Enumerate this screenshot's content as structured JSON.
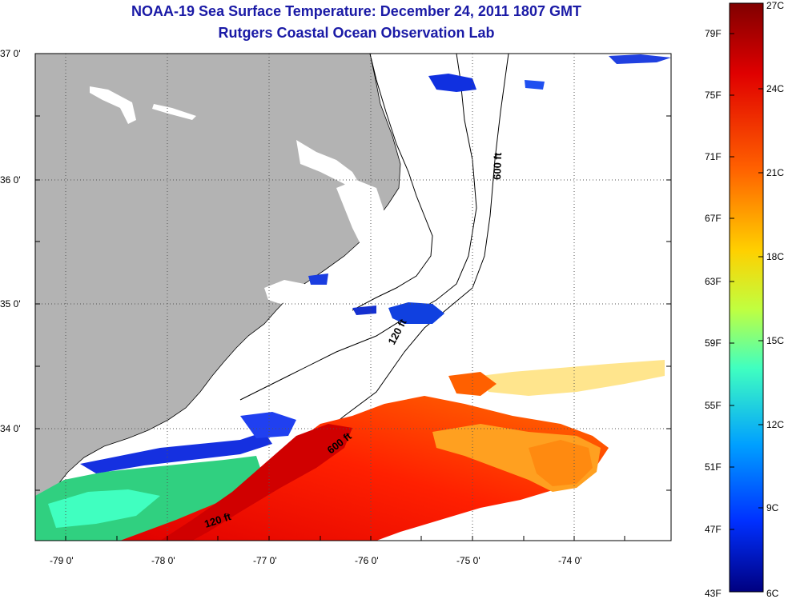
{
  "header": {
    "title": "NOAA-19 Sea Surface Temperature:  December 24, 2011 1807 GMT",
    "subtitle": "Rutgers Coastal Ocean Observation Lab"
  },
  "axes": {
    "latitude_labels": [
      "37 0'",
      "36 0'",
      "35 0'",
      "34 0'"
    ],
    "longitude_labels": [
      "-79 0'",
      "-78 0'",
      "-77 0'",
      "-76 0'",
      "-75 0'",
      "-74 0'"
    ]
  },
  "contours": {
    "label_600": "600 ft",
    "label_120": "120 ft"
  },
  "colorbar": {
    "fahrenheit_labels": [
      "79F",
      "75F",
      "71F",
      "67F",
      "63F",
      "59F",
      "55F",
      "51F",
      "47F",
      "43F"
    ],
    "celsius_labels": [
      "27C",
      "24C",
      "21C",
      "18C",
      "15C",
      "12C",
      "9C",
      "6C"
    ],
    "colors": [
      "#800000",
      "#e00000",
      "#ff6000",
      "#ffd000",
      "#c0ff40",
      "#40ffc0",
      "#00a0ff",
      "#0030ff",
      "#000080"
    ]
  },
  "colors": {
    "land": "#b3b3b3",
    "title": "#1a1aa6"
  }
}
